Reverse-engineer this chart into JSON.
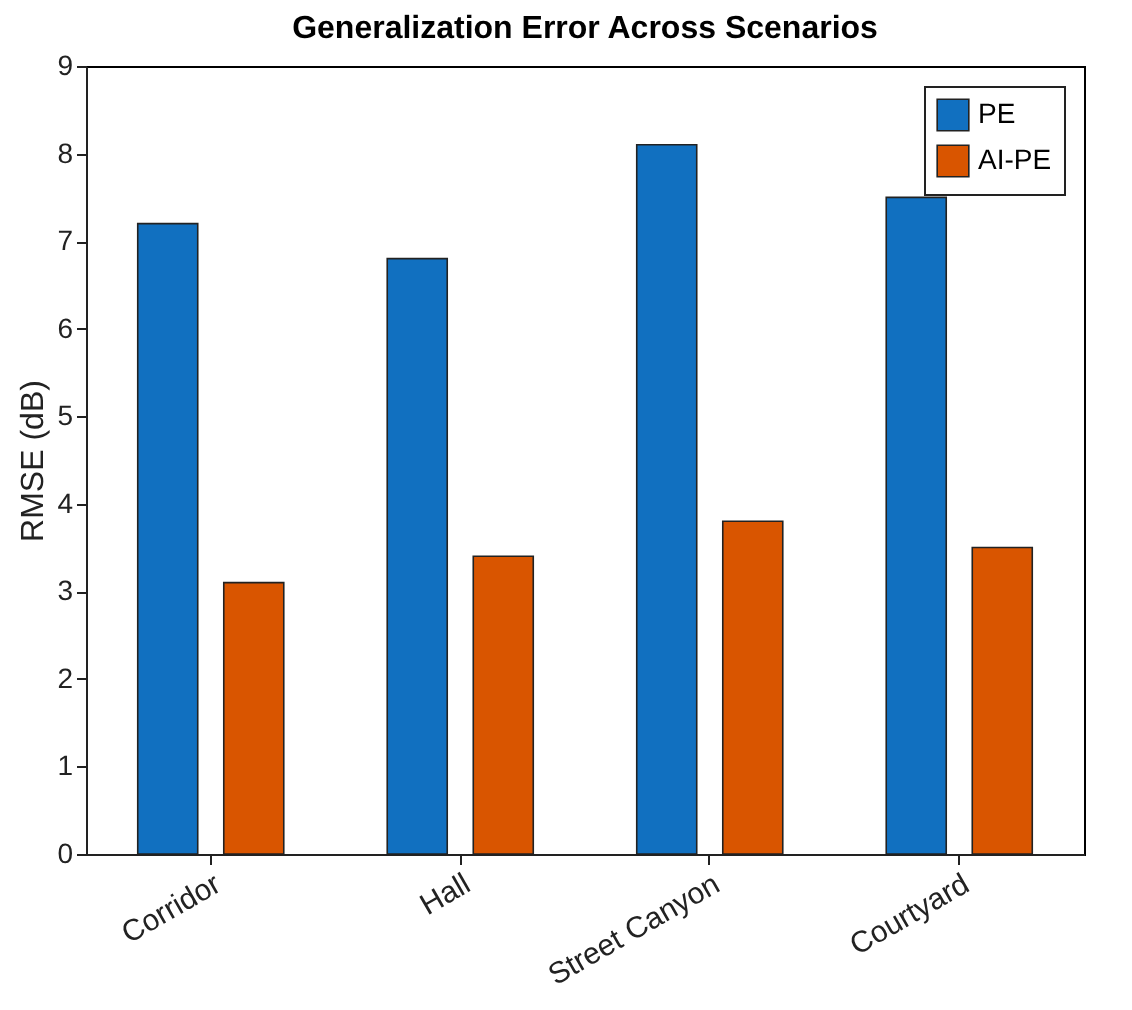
{
  "chart_data": {
    "type": "bar",
    "title": "Generalization Error Across Scenarios",
    "ylabel": "RMSE (dB)",
    "categories": [
      "Corridor",
      "Hall",
      "Street Canyon",
      "Courtyard"
    ],
    "series": [
      {
        "name": "PE",
        "color": "#1170c0",
        "values": [
          7.2,
          6.8,
          8.1,
          7.5
        ]
      },
      {
        "name": "AI-PE",
        "color": "#d95500",
        "values": [
          3.1,
          3.4,
          3.8,
          3.5
        ]
      }
    ],
    "ylim": [
      0,
      9
    ],
    "yticks": [
      0,
      1,
      2,
      3,
      4,
      5,
      6,
      7,
      8,
      9
    ],
    "legend": "top right",
    "grid": false
  }
}
